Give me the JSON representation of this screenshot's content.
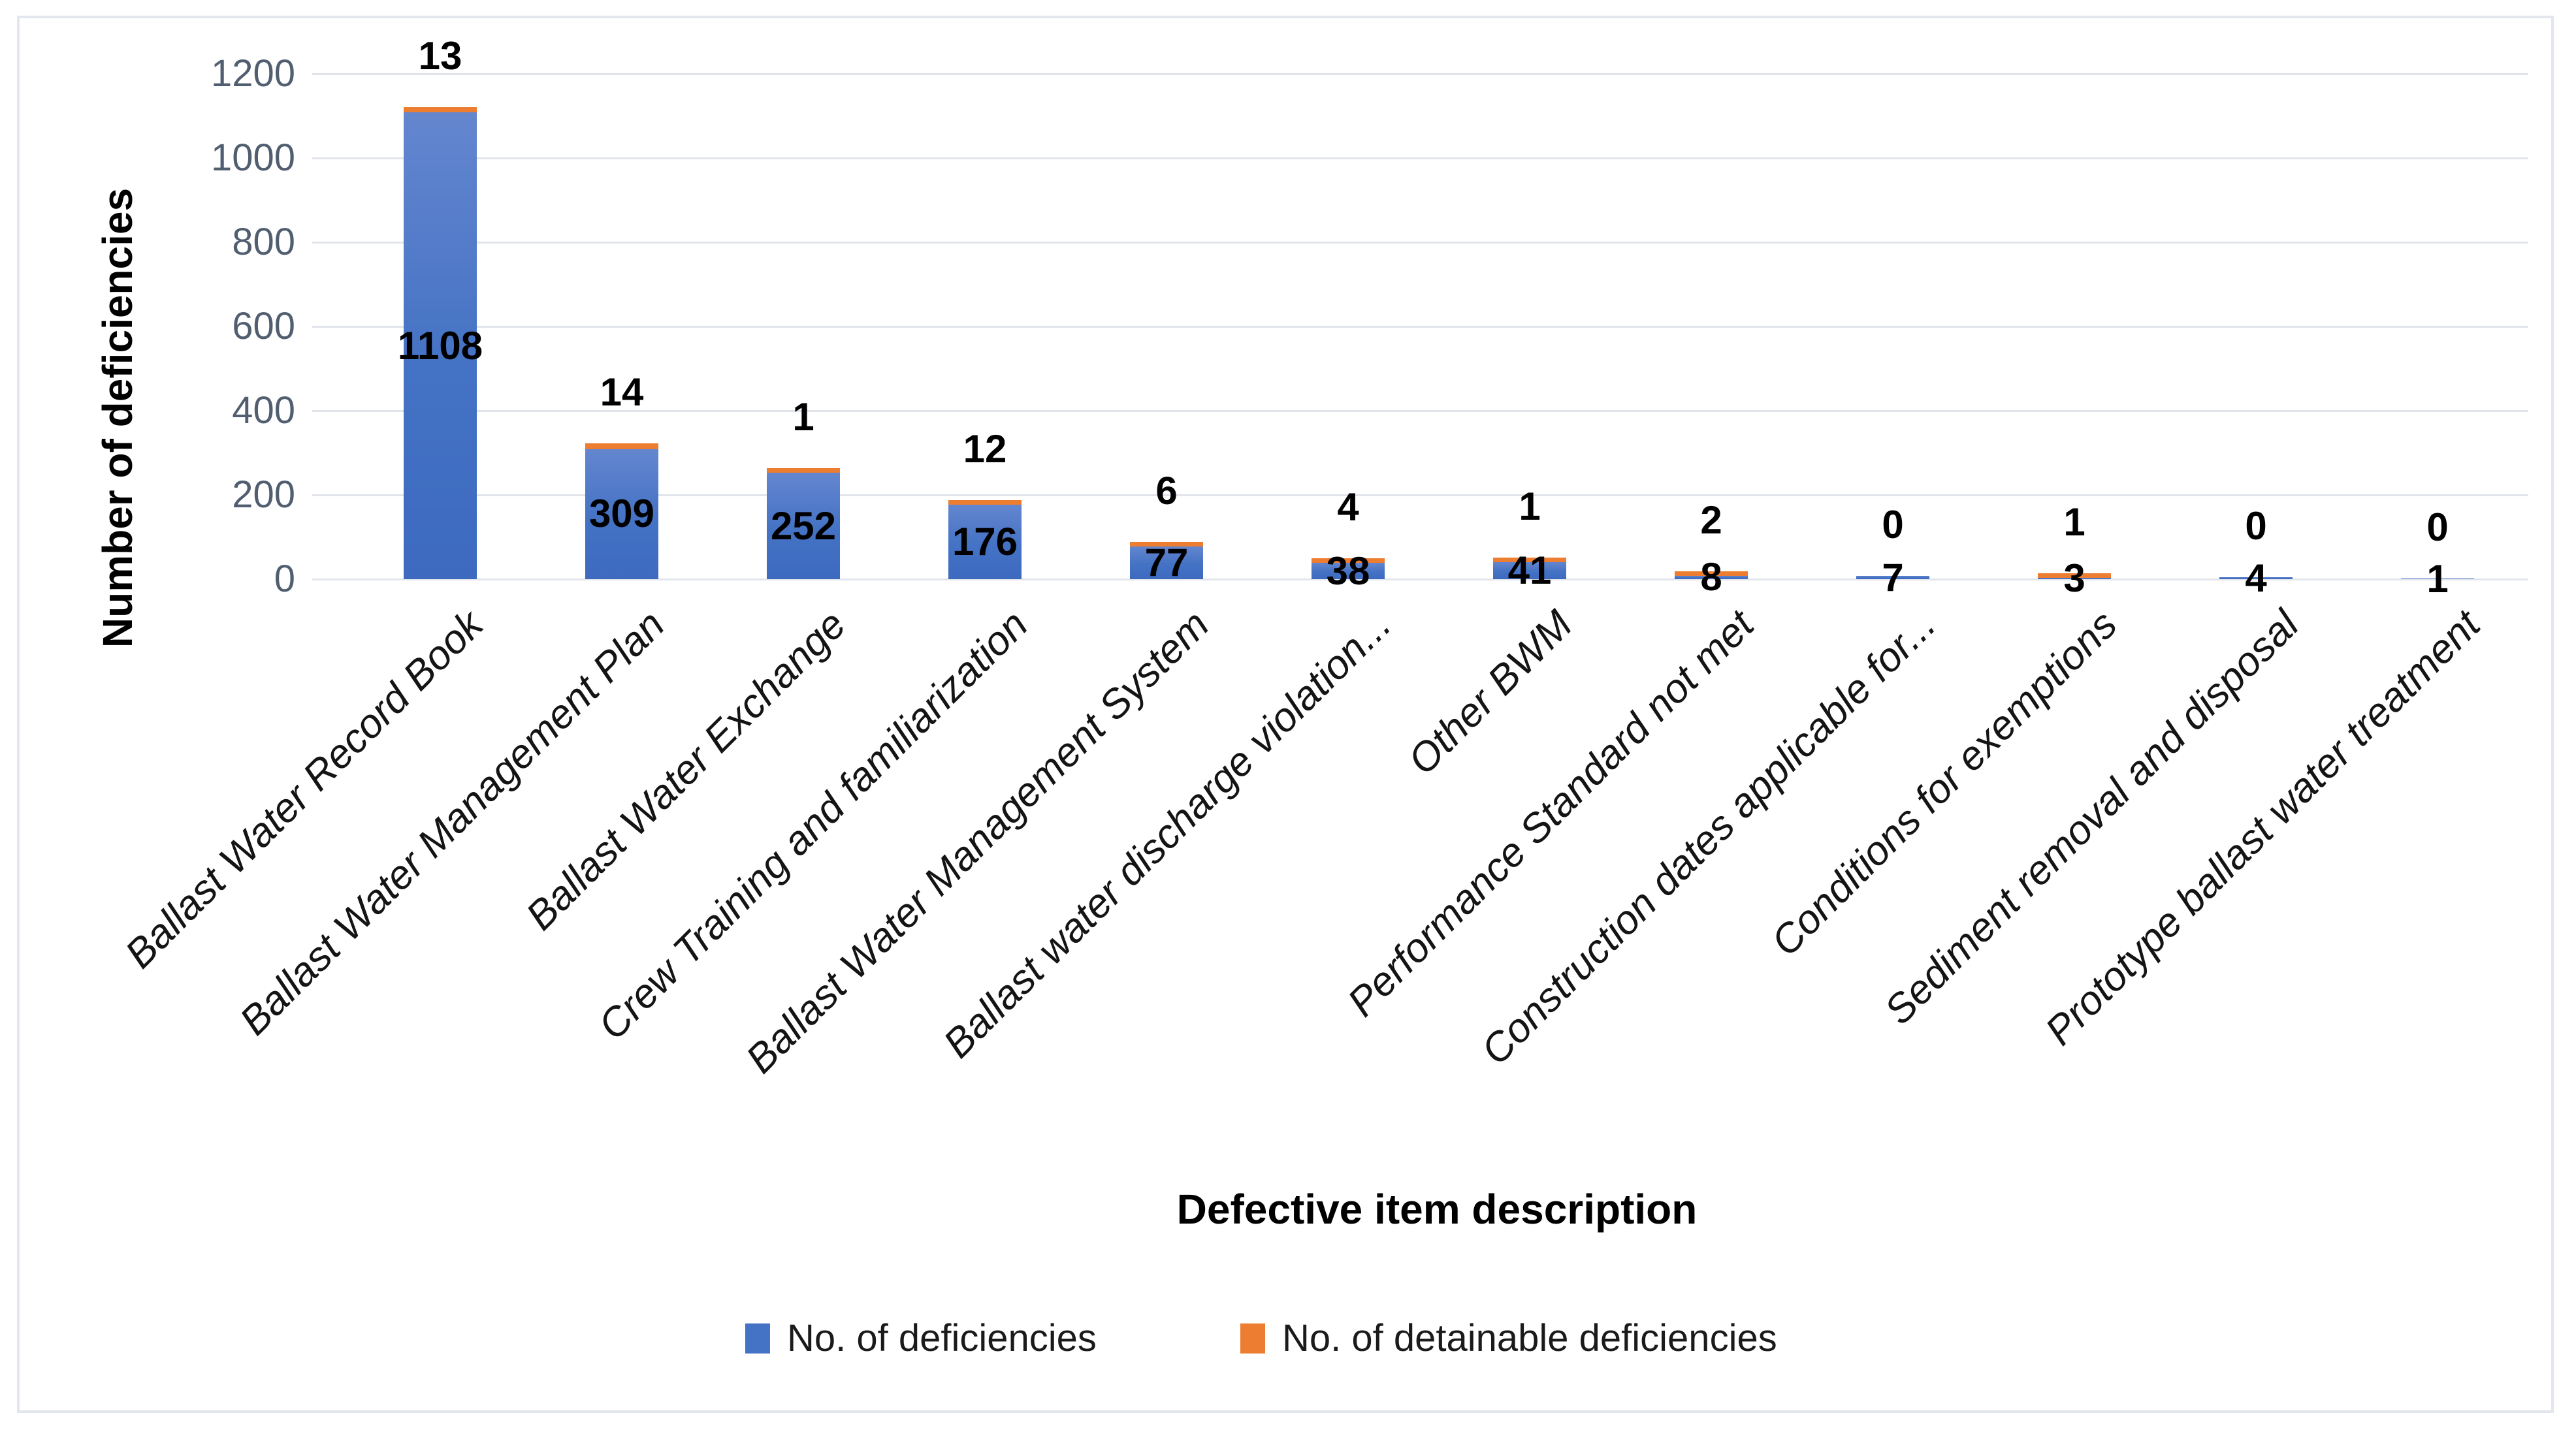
{
  "chart_data": {
    "type": "bar",
    "subtype": "stacked-column",
    "title": "",
    "xlabel": "Defective item description",
    "ylabel": "Number of deficiencies",
    "ylim": [
      0,
      1200
    ],
    "yticks": [
      0,
      200,
      400,
      600,
      800,
      1000,
      1200
    ],
    "grid": true,
    "legend_position": "bottom",
    "categories": [
      "Ballast Water Record Book",
      "Ballast Water Management Plan",
      "Ballast Water Exchange",
      "Crew Training and familiarization",
      "Ballast Water Management System",
      "Ballast water discharge violation...",
      "Other BWM",
      "Performance Standard not met",
      "Construction dates applicable for...",
      "Conditions for exemptions",
      "Sediment removal and disposal",
      "Prototype ballast water treatment"
    ],
    "series": [
      {
        "name": "No. of deficiencies",
        "color": "#4472C4",
        "label_placement": "center",
        "values": [
          1108,
          309,
          252,
          176,
          77,
          38,
          41,
          8,
          7,
          3,
          4,
          1
        ]
      },
      {
        "name": "No. of detainable deficiencies",
        "color": "#ED7D31",
        "label_placement": "outside-end",
        "values": [
          13,
          14,
          1,
          12,
          6,
          4,
          1,
          2,
          0,
          1,
          0,
          0
        ]
      }
    ]
  },
  "colors": {
    "bar_blue": "#4472C4",
    "bar_blue_gradient_top": "#6486CF",
    "bar_orange": "#ED7D31",
    "gridline": "#E1E5EB",
    "frame_border": "#E3E7ED",
    "tick_text": "#515E70",
    "label_text": "#000000"
  }
}
